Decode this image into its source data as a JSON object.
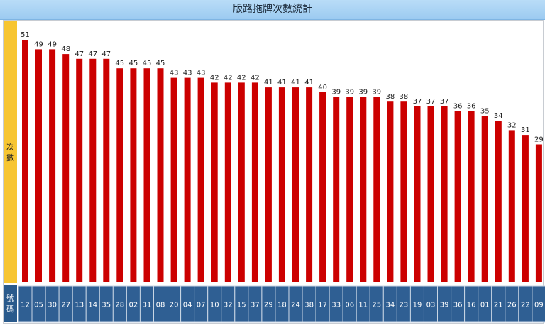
{
  "title": "版路拖牌次數統計",
  "y_label_chars": [
    "次",
    "數"
  ],
  "x_label_chars": [
    "號",
    "碼"
  ],
  "colors": {
    "bar": "#cc0000",
    "label_bg": "#2f5f93",
    "ylabel_bg": "#f7c531"
  },
  "chart_data": {
    "type": "bar",
    "title": "版路拖牌次數統計",
    "xlabel": "號碼",
    "ylabel": "次數",
    "categories": [
      "12",
      "05",
      "30",
      "27",
      "13",
      "14",
      "35",
      "28",
      "02",
      "31",
      "08",
      "20",
      "04",
      "07",
      "10",
      "32",
      "15",
      "37",
      "29",
      "18",
      "24",
      "38",
      "17",
      "33",
      "06",
      "11",
      "25",
      "34",
      "23",
      "19",
      "03",
      "39",
      "36",
      "16",
      "01",
      "21",
      "26",
      "22",
      "09"
    ],
    "values": [
      51,
      49,
      49,
      48,
      47,
      47,
      47,
      45,
      45,
      45,
      45,
      43,
      43,
      43,
      42,
      42,
      42,
      42,
      41,
      41,
      41,
      41,
      40,
      39,
      39,
      39,
      39,
      38,
      38,
      37,
      37,
      37,
      36,
      36,
      35,
      34,
      32,
      31,
      29
    ],
    "ylim": [
      0,
      51
    ],
    "grid": false,
    "legend": "none"
  }
}
